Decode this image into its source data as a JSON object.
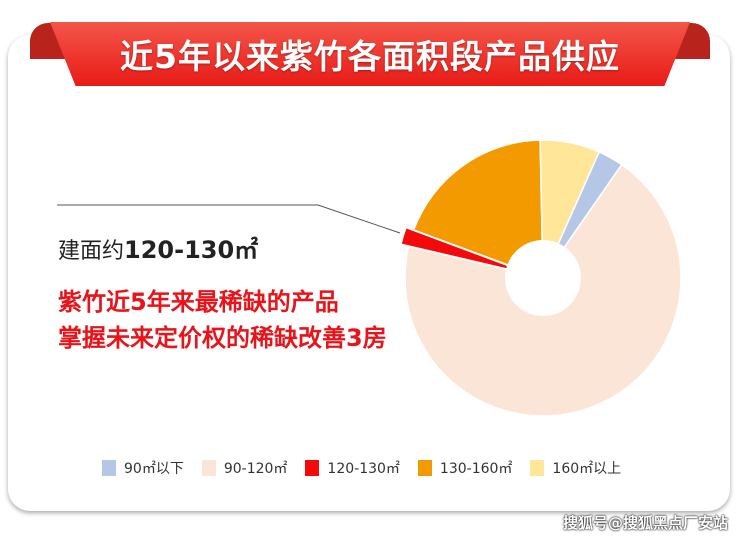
{
  "title": "近5年以来紫竹各面积段产品供应",
  "annotation": {
    "line1_prefix": "建面约",
    "line1_value": "120-130㎡",
    "line2": "紫竹近5年来最稀缺的产品",
    "line3": "掌握未来定价权的稀缺改善3房"
  },
  "watermark": "搜狐号@搜狐黑点厂安站",
  "chart_data": {
    "type": "pie",
    "variant": "donut",
    "categories": [
      "90㎡以下",
      "90-120㎡",
      "120-130㎡",
      "130-160㎡",
      "160㎡以上"
    ],
    "values": [
      3,
      69,
      2,
      19,
      7
    ],
    "unit": "percent (estimated)",
    "colors": [
      "#b4c7e7",
      "#fbe5d6",
      "#f40a0a",
      "#f29a00",
      "#ffe699"
    ],
    "highlighted": "120-130㎡",
    "legend_position": "bottom"
  }
}
